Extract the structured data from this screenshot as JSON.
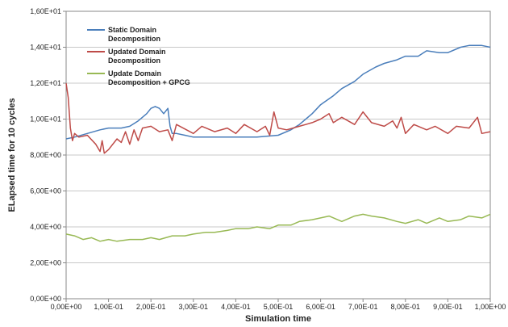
{
  "chart_data": {
    "type": "line",
    "xlabel": "Simulation time",
    "ylabel": "ELapsed time for 10 cycles",
    "xlim": [
      0,
      1
    ],
    "ylim": [
      0,
      16
    ],
    "grid": true,
    "legend_position": "top-left",
    "x_ticks": [
      0,
      0.1,
      0.2,
      0.3,
      0.4,
      0.5,
      0.6,
      0.7,
      0.8,
      0.9,
      1.0
    ],
    "x_tick_labels": [
      "0,00E+00",
      "1,00E-01",
      "2,00E-01",
      "3,00E-01",
      "4,00E-01",
      "5,00E-01",
      "6,00E-01",
      "7,00E-01",
      "8,00E-01",
      "9,00E-01",
      "1,00E+00"
    ],
    "y_ticks": [
      0,
      2,
      4,
      6,
      8,
      10,
      12,
      14,
      16
    ],
    "y_tick_labels": [
      "0,00E+00",
      "2,00E+00",
      "4,00E+00",
      "6,00E+00",
      "8,00E+00",
      "1,00E+01",
      "1,20E+01",
      "1,40E+01",
      "1,60E+01"
    ],
    "series": [
      {
        "name": "Static Domain\nDecomposition",
        "color": "#4a7ebb",
        "x": [
          0,
          0.02,
          0.05,
          0.08,
          0.1,
          0.13,
          0.15,
          0.17,
          0.19,
          0.2,
          0.21,
          0.22,
          0.23,
          0.24,
          0.245,
          0.25,
          0.26,
          0.28,
          0.3,
          0.35,
          0.4,
          0.45,
          0.5,
          0.53,
          0.55,
          0.58,
          0.6,
          0.63,
          0.65,
          0.68,
          0.7,
          0.73,
          0.75,
          0.78,
          0.8,
          0.83,
          0.85,
          0.88,
          0.9,
          0.93,
          0.95,
          0.98,
          1.0
        ],
        "y": [
          8.9,
          9.0,
          9.2,
          9.4,
          9.5,
          9.5,
          9.6,
          9.9,
          10.3,
          10.6,
          10.7,
          10.6,
          10.3,
          10.6,
          9.6,
          9.2,
          9.2,
          9.1,
          9.0,
          9.0,
          9.0,
          9.0,
          9.1,
          9.4,
          9.7,
          10.3,
          10.8,
          11.3,
          11.7,
          12.1,
          12.5,
          12.9,
          13.1,
          13.3,
          13.5,
          13.5,
          13.8,
          13.7,
          13.7,
          14.0,
          14.1,
          14.1,
          14.0
        ]
      },
      {
        "name": "Updated Domain\nDecomposition",
        "color": "#be4b48",
        "x": [
          0,
          0.005,
          0.01,
          0.015,
          0.02,
          0.03,
          0.05,
          0.07,
          0.08,
          0.085,
          0.09,
          0.1,
          0.12,
          0.13,
          0.14,
          0.15,
          0.16,
          0.17,
          0.18,
          0.2,
          0.22,
          0.24,
          0.25,
          0.26,
          0.3,
          0.32,
          0.35,
          0.38,
          0.4,
          0.42,
          0.45,
          0.47,
          0.48,
          0.49,
          0.5,
          0.52,
          0.55,
          0.58,
          0.6,
          0.62,
          0.63,
          0.65,
          0.68,
          0.7,
          0.72,
          0.75,
          0.77,
          0.78,
          0.79,
          0.8,
          0.82,
          0.85,
          0.87,
          0.9,
          0.92,
          0.95,
          0.97,
          0.98,
          1.0
        ],
        "y": [
          12.0,
          11.2,
          9.5,
          8.8,
          9.2,
          9.0,
          9.1,
          8.6,
          8.2,
          8.8,
          8.1,
          8.3,
          8.9,
          8.7,
          9.3,
          8.6,
          9.4,
          8.8,
          9.5,
          9.6,
          9.3,
          9.4,
          8.8,
          9.7,
          9.2,
          9.6,
          9.3,
          9.5,
          9.2,
          9.7,
          9.3,
          9.6,
          9.1,
          10.4,
          9.5,
          9.4,
          9.6,
          9.8,
          10.0,
          10.3,
          9.8,
          10.1,
          9.7,
          10.4,
          9.8,
          9.6,
          9.9,
          9.5,
          10.1,
          9.2,
          9.7,
          9.4,
          9.6,
          9.2,
          9.6,
          9.5,
          10.1,
          9.2,
          9.3
        ]
      },
      {
        "name": "Update Domain\nDecomposition + GPCG",
        "color": "#98b954",
        "x": [
          0,
          0.02,
          0.04,
          0.06,
          0.08,
          0.1,
          0.12,
          0.15,
          0.18,
          0.2,
          0.22,
          0.25,
          0.28,
          0.3,
          0.33,
          0.35,
          0.38,
          0.4,
          0.43,
          0.45,
          0.48,
          0.5,
          0.53,
          0.55,
          0.58,
          0.6,
          0.62,
          0.65,
          0.68,
          0.7,
          0.72,
          0.75,
          0.78,
          0.8,
          0.83,
          0.85,
          0.88,
          0.9,
          0.93,
          0.95,
          0.98,
          1.0
        ],
        "y": [
          3.6,
          3.5,
          3.3,
          3.4,
          3.2,
          3.3,
          3.2,
          3.3,
          3.3,
          3.4,
          3.3,
          3.5,
          3.5,
          3.6,
          3.7,
          3.7,
          3.8,
          3.9,
          3.9,
          4.0,
          3.9,
          4.1,
          4.1,
          4.3,
          4.4,
          4.5,
          4.6,
          4.3,
          4.6,
          4.7,
          4.6,
          4.5,
          4.3,
          4.2,
          4.4,
          4.2,
          4.5,
          4.3,
          4.4,
          4.6,
          4.5,
          4.7
        ]
      }
    ]
  }
}
